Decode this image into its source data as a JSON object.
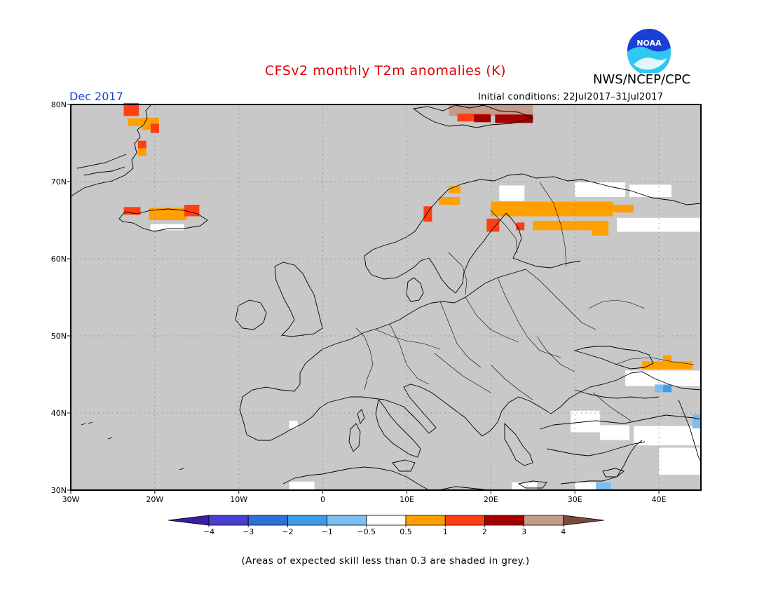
{
  "title": "CFSv2 monthly T2m anomalies (K)",
  "organization": "NWS/NCEP/CPC",
  "logo_text": "NOAA",
  "month_label": "Dec 2017",
  "initial_conditions": "Initial conditions: 22Jul2017–31Jul2017",
  "footnote": "(Areas of expected skill less than 0.3 are shaded in grey.)",
  "map": {
    "lon_range": [
      -30,
      45
    ],
    "lat_range": [
      30,
      80
    ],
    "background_color": "#c8c8c8",
    "x_ticks": [
      {
        "value": -30,
        "label": "30W"
      },
      {
        "value": -20,
        "label": "20W"
      },
      {
        "value": -10,
        "label": "10W"
      },
      {
        "value": 0,
        "label": "0"
      },
      {
        "value": 10,
        "label": "10E"
      },
      {
        "value": 20,
        "label": "20E"
      },
      {
        "value": 30,
        "label": "30E"
      },
      {
        "value": 40,
        "label": "40E"
      }
    ],
    "y_ticks": [
      {
        "value": 30,
        "label": "30N"
      },
      {
        "value": 40,
        "label": "40N"
      },
      {
        "value": 50,
        "label": "50N"
      },
      {
        "value": 60,
        "label": "60N"
      },
      {
        "value": 70,
        "label": "70N"
      },
      {
        "value": 80,
        "label": "80N"
      }
    ],
    "anomaly_cells": [
      {
        "lon": -23.7,
        "lat": 78.5,
        "w": 1.8,
        "h": 1.7,
        "level": "1-2"
      },
      {
        "lon": -23.2,
        "lat": 77.2,
        "w": 2.2,
        "h": 1.0,
        "level": "0.5-1"
      },
      {
        "lon": -21.5,
        "lat": 76.7,
        "w": 2.0,
        "h": 1.6,
        "level": "0.5-1"
      },
      {
        "lon": -20.5,
        "lat": 76.3,
        "w": 1.0,
        "h": 1.2,
        "level": "1-2"
      },
      {
        "lon": -22.0,
        "lat": 74.3,
        "w": 1.0,
        "h": 1.0,
        "level": "1-2"
      },
      {
        "lon": -22.0,
        "lat": 73.3,
        "w": 1.0,
        "h": 1.0,
        "level": "0.5-1"
      },
      {
        "lon": -23.7,
        "lat": 65.7,
        "w": 2.0,
        "h": 1.0,
        "level": "1-2"
      },
      {
        "lon": -20.7,
        "lat": 65.0,
        "w": 4.5,
        "h": 1.6,
        "level": "0.5-1"
      },
      {
        "lon": -16.5,
        "lat": 65.5,
        "w": 1.8,
        "h": 1.5,
        "level": "1-2"
      },
      {
        "lon": -20.5,
        "lat": 63.7,
        "w": 4.0,
        "h": 0.8,
        "level": "below-0.5-neutral"
      },
      {
        "lon": 15.0,
        "lat": 78.5,
        "w": 10.0,
        "h": 1.4,
        "level": "3-4"
      },
      {
        "lon": 16.0,
        "lat": 77.8,
        "w": 3.8,
        "h": 1.0,
        "level": "1-2"
      },
      {
        "lon": 18.0,
        "lat": 77.7,
        "w": 2.0,
        "h": 1.0,
        "level": "2-3"
      },
      {
        "lon": 20.5,
        "lat": 77.6,
        "w": 4.5,
        "h": 1.1,
        "level": "2-3"
      },
      {
        "lon": 12.0,
        "lat": 64.8,
        "w": 1.0,
        "h": 2.0,
        "level": "1-2"
      },
      {
        "lon": 15.0,
        "lat": 68.5,
        "w": 1.4,
        "h": 0.9,
        "level": "0.5-1"
      },
      {
        "lon": 13.8,
        "lat": 67.0,
        "w": 2.5,
        "h": 1.0,
        "level": "0.5-1"
      },
      {
        "lon": 20.0,
        "lat": 65.5,
        "w": 14.5,
        "h": 1.9,
        "level": "0.5-1"
      },
      {
        "lon": 25.0,
        "lat": 63.7,
        "w": 9.0,
        "h": 1.2,
        "level": "0.5-1"
      },
      {
        "lon": 32.0,
        "lat": 63.0,
        "w": 2.0,
        "h": 1.0,
        "level": "0.5-1"
      },
      {
        "lon": 34.0,
        "lat": 66.0,
        "w": 3.0,
        "h": 1.0,
        "level": "0.5-1"
      },
      {
        "lon": 19.5,
        "lat": 63.5,
        "w": 1.5,
        "h": 1.7,
        "level": "1-2"
      },
      {
        "lon": 23.0,
        "lat": 63.7,
        "w": 1.0,
        "h": 1.0,
        "level": "1-2"
      },
      {
        "lon": 44.0,
        "lat": 63.7,
        "w": 1.0,
        "h": 1.0,
        "level": "0.5-1"
      },
      {
        "lon": 21.0,
        "lat": 67.5,
        "w": 3.0,
        "h": 2.0,
        "level": "below-0.5-neutral"
      },
      {
        "lon": 30.0,
        "lat": 68.0,
        "w": 6.0,
        "h": 1.9,
        "level": "below-0.5-neutral"
      },
      {
        "lon": 36.5,
        "lat": 68.0,
        "w": 5.0,
        "h": 1.6,
        "level": "below-0.5-neutral"
      },
      {
        "lon": 35.0,
        "lat": 63.5,
        "w": 10.0,
        "h": 1.8,
        "level": "below-0.5-neutral"
      },
      {
        "lon": 38.0,
        "lat": 45.7,
        "w": 6.0,
        "h": 1.0,
        "level": "0.5-1"
      },
      {
        "lon": 40.5,
        "lat": 46.5,
        "w": 1.0,
        "h": 1.0,
        "level": "0.5-1"
      },
      {
        "lon": 36.0,
        "lat": 43.5,
        "w": 9.0,
        "h": 2.0,
        "level": "below-0.5-neutral"
      },
      {
        "lon": 39.5,
        "lat": 42.7,
        "w": 2.0,
        "h": 1.0,
        "level": "-1--0.5"
      },
      {
        "lon": 40.5,
        "lat": 42.7,
        "w": 1.0,
        "h": 0.9,
        "level": "-2--1"
      },
      {
        "lon": 29.5,
        "lat": 37.5,
        "w": 3.5,
        "h": 2.8,
        "level": "below-0.5-neutral"
      },
      {
        "lon": 33.0,
        "lat": 36.5,
        "w": 3.5,
        "h": 1.9,
        "level": "below-0.5-neutral"
      },
      {
        "lon": 37.0,
        "lat": 35.8,
        "w": 8.0,
        "h": 2.5,
        "level": "below-0.5-neutral"
      },
      {
        "lon": 40.0,
        "lat": 32.0,
        "w": 5.0,
        "h": 3.5,
        "level": "below-0.5-neutral"
      },
      {
        "lon": 44.0,
        "lat": 38.0,
        "w": 1.0,
        "h": 1.8,
        "level": "-1--0.5"
      },
      {
        "lon": -4.0,
        "lat": 38.0,
        "w": 1.0,
        "h": 1.0,
        "level": "below-0.5-neutral"
      },
      {
        "lon": -4.0,
        "lat": 30.0,
        "w": 3.0,
        "h": 1.1,
        "level": "below-0.5-neutral"
      },
      {
        "lon": 22.5,
        "lat": 30.0,
        "w": 3.0,
        "h": 1.0,
        "level": "below-0.5-neutral"
      },
      {
        "lon": 30.0,
        "lat": 30.0,
        "w": 2.5,
        "h": 1.0,
        "level": "below-0.5-neutral"
      },
      {
        "lon": 32.5,
        "lat": 30.0,
        "w": 1.8,
        "h": 1.0,
        "level": "-1--0.5"
      }
    ]
  },
  "colorbar": {
    "colors": [
      "#3a1ea6",
      "#4a3fd0",
      "#2f6fd6",
      "#3f9be8",
      "#7cbef0",
      "#ffffff",
      "#ffa000",
      "#ff3f12",
      "#a40000",
      "#c49a8a",
      "#7a4a3a"
    ],
    "labels": [
      "−4",
      "−3",
      "−2",
      "−1",
      "−0.5",
      "0.5",
      "1",
      "2",
      "3",
      "4"
    ]
  },
  "level_colors": {
    "-2--1": "#3f9be8",
    "-1--0.5": "#7cbef0",
    "below-0.5-neutral": "#ffffff",
    "0.5-1": "#ffa000",
    "1-2": "#ff3f12",
    "2-3": "#a40000",
    "3-4": "#c49a8a"
  }
}
